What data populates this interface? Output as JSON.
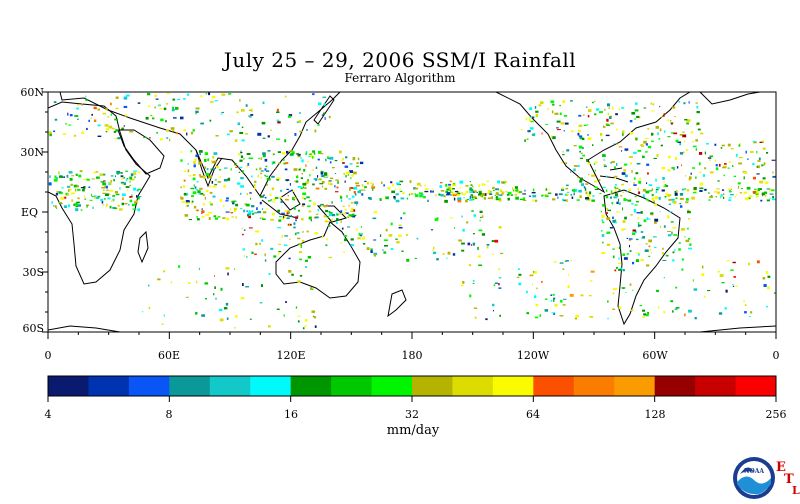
{
  "title": "July 25 – 29, 2006 SSM/I Rainfall",
  "subtitle": "Ferraro Algorithm",
  "map": {
    "lat_labels": [
      "60N",
      "30N",
      "EQ",
      "30S",
      "60S"
    ],
    "lon_labels": [
      "0",
      "60E",
      "120E",
      "180",
      "120W",
      "60W",
      "0"
    ]
  },
  "colorbar": {
    "units": "mm/day",
    "tick_labels": [
      "4",
      "8",
      "16",
      "32",
      "64",
      "128",
      "256"
    ],
    "colors": [
      "#0a1a6e",
      "#0033b0",
      "#0a55f5",
      "#0a9898",
      "#12c8c8",
      "#00fafa",
      "#009600",
      "#00c800",
      "#00f500",
      "#b4b400",
      "#dcdc00",
      "#fafa00",
      "#fa5000",
      "#fa7d00",
      "#fa9b00",
      "#960000",
      "#c80000",
      "#fa0000"
    ]
  },
  "logo": {
    "name": "NOAA",
    "letters": [
      "E",
      "T",
      "L"
    ]
  }
}
